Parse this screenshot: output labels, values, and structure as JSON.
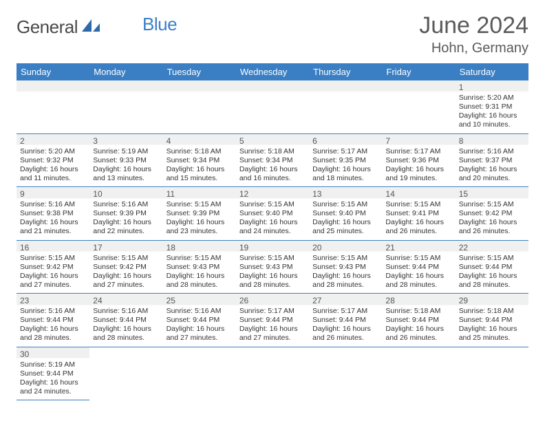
{
  "logo": {
    "part1": "General",
    "part2": "Blue"
  },
  "title": "June 2024",
  "location": "Hohn, Germany",
  "colors": {
    "accent": "#3a7fc4",
    "header_text": "#5a5a5a",
    "cell_text": "#333333",
    "blank_bg": "#f0f0f0"
  },
  "daysOfWeek": [
    "Sunday",
    "Monday",
    "Tuesday",
    "Wednesday",
    "Thursday",
    "Friday",
    "Saturday"
  ],
  "startOffset": 6,
  "daysInMonth": 30,
  "days": {
    "1": {
      "sunrise": "5:20 AM",
      "sunset": "9:31 PM",
      "dl_h": 16,
      "dl_m": 10
    },
    "2": {
      "sunrise": "5:20 AM",
      "sunset": "9:32 PM",
      "dl_h": 16,
      "dl_m": 11
    },
    "3": {
      "sunrise": "5:19 AM",
      "sunset": "9:33 PM",
      "dl_h": 16,
      "dl_m": 13
    },
    "4": {
      "sunrise": "5:18 AM",
      "sunset": "9:34 PM",
      "dl_h": 16,
      "dl_m": 15
    },
    "5": {
      "sunrise": "5:18 AM",
      "sunset": "9:34 PM",
      "dl_h": 16,
      "dl_m": 16
    },
    "6": {
      "sunrise": "5:17 AM",
      "sunset": "9:35 PM",
      "dl_h": 16,
      "dl_m": 18
    },
    "7": {
      "sunrise": "5:17 AM",
      "sunset": "9:36 PM",
      "dl_h": 16,
      "dl_m": 19
    },
    "8": {
      "sunrise": "5:16 AM",
      "sunset": "9:37 PM",
      "dl_h": 16,
      "dl_m": 20
    },
    "9": {
      "sunrise": "5:16 AM",
      "sunset": "9:38 PM",
      "dl_h": 16,
      "dl_m": 21
    },
    "10": {
      "sunrise": "5:16 AM",
      "sunset": "9:39 PM",
      "dl_h": 16,
      "dl_m": 22
    },
    "11": {
      "sunrise": "5:15 AM",
      "sunset": "9:39 PM",
      "dl_h": 16,
      "dl_m": 23
    },
    "12": {
      "sunrise": "5:15 AM",
      "sunset": "9:40 PM",
      "dl_h": 16,
      "dl_m": 24
    },
    "13": {
      "sunrise": "5:15 AM",
      "sunset": "9:40 PM",
      "dl_h": 16,
      "dl_m": 25
    },
    "14": {
      "sunrise": "5:15 AM",
      "sunset": "9:41 PM",
      "dl_h": 16,
      "dl_m": 26
    },
    "15": {
      "sunrise": "5:15 AM",
      "sunset": "9:42 PM",
      "dl_h": 16,
      "dl_m": 26
    },
    "16": {
      "sunrise": "5:15 AM",
      "sunset": "9:42 PM",
      "dl_h": 16,
      "dl_m": 27
    },
    "17": {
      "sunrise": "5:15 AM",
      "sunset": "9:42 PM",
      "dl_h": 16,
      "dl_m": 27
    },
    "18": {
      "sunrise": "5:15 AM",
      "sunset": "9:43 PM",
      "dl_h": 16,
      "dl_m": 28
    },
    "19": {
      "sunrise": "5:15 AM",
      "sunset": "9:43 PM",
      "dl_h": 16,
      "dl_m": 28
    },
    "20": {
      "sunrise": "5:15 AM",
      "sunset": "9:43 PM",
      "dl_h": 16,
      "dl_m": 28
    },
    "21": {
      "sunrise": "5:15 AM",
      "sunset": "9:44 PM",
      "dl_h": 16,
      "dl_m": 28
    },
    "22": {
      "sunrise": "5:15 AM",
      "sunset": "9:44 PM",
      "dl_h": 16,
      "dl_m": 28
    },
    "23": {
      "sunrise": "5:16 AM",
      "sunset": "9:44 PM",
      "dl_h": 16,
      "dl_m": 28
    },
    "24": {
      "sunrise": "5:16 AM",
      "sunset": "9:44 PM",
      "dl_h": 16,
      "dl_m": 28
    },
    "25": {
      "sunrise": "5:16 AM",
      "sunset": "9:44 PM",
      "dl_h": 16,
      "dl_m": 27
    },
    "26": {
      "sunrise": "5:17 AM",
      "sunset": "9:44 PM",
      "dl_h": 16,
      "dl_m": 27
    },
    "27": {
      "sunrise": "5:17 AM",
      "sunset": "9:44 PM",
      "dl_h": 16,
      "dl_m": 26
    },
    "28": {
      "sunrise": "5:18 AM",
      "sunset": "9:44 PM",
      "dl_h": 16,
      "dl_m": 26
    },
    "29": {
      "sunrise": "5:18 AM",
      "sunset": "9:44 PM",
      "dl_h": 16,
      "dl_m": 25
    },
    "30": {
      "sunrise": "5:19 AM",
      "sunset": "9:44 PM",
      "dl_h": 16,
      "dl_m": 24
    }
  },
  "labels": {
    "sunrise": "Sunrise:",
    "sunset": "Sunset:",
    "daylight": "Daylight:",
    "hours": "hours",
    "and": "and",
    "minutes": "minutes."
  }
}
